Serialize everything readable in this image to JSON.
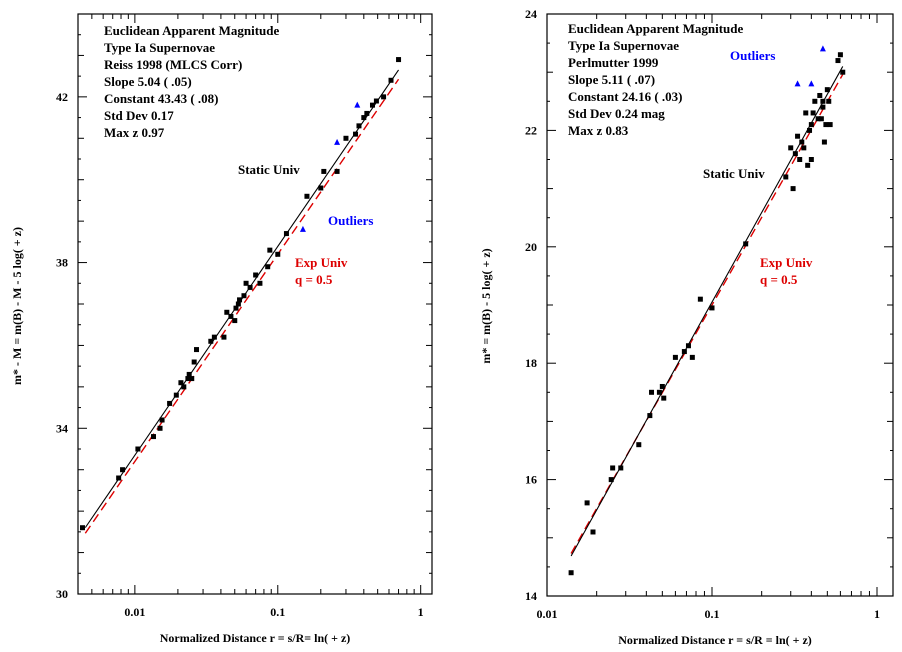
{
  "colors": {
    "static_line": "#000000",
    "exp_line": "#dd0000",
    "points": "#000000",
    "outliers": "#0000ff",
    "exp_label": "#dd0000",
    "outlier_label": "#0000ff"
  },
  "chart_data": [
    {
      "type": "scatter",
      "xscale": "log",
      "xlim": [
        0.004,
        1.2
      ],
      "ylim": [
        30,
        44
      ],
      "xticks": [
        0.01,
        0.1,
        1
      ],
      "xtick_labels": [
        "0.01",
        "0.1",
        "1"
      ],
      "yticks": [
        30,
        34,
        38,
        42
      ],
      "ytick_labels": [
        "30",
        "34",
        "38",
        "42"
      ],
      "xlabel": "Normalized Distance  r = s/R= ln( + z)",
      "ylabel": "m* - M  = m(B) - M - 5 log( + z)",
      "info_lines": [
        "Euclidean Apparent Magnitude",
        "Type Ia Supernovae",
        "Reiss  1998  (MLCS Corr)",
        "Slope  5.04 ( .05)",
        "Constant 43.43 ( .08)",
        "Std Dev  0.17",
        "Max z   0.97"
      ],
      "labels": {
        "static": "Static Univ",
        "outliers": "Outliers",
        "exp": "Exp Univ",
        "q": "q = 0.5"
      },
      "lines": {
        "static": {
          "slope": 5.04,
          "constant": 43.43,
          "x_range": [
            0.0045,
            0.7
          ]
        },
        "exp": {
          "slope": 5.0,
          "constant": 43.2,
          "x_range": [
            0.0045,
            0.7
          ]
        }
      },
      "points": [
        [
          0.0043,
          31.6
        ],
        [
          0.0077,
          32.8
        ],
        [
          0.0082,
          33.0
        ],
        [
          0.0105,
          33.5
        ],
        [
          0.0135,
          33.8
        ],
        [
          0.015,
          34.0
        ],
        [
          0.0155,
          34.2
        ],
        [
          0.0175,
          34.6
        ],
        [
          0.0195,
          34.8
        ],
        [
          0.021,
          35.1
        ],
        [
          0.022,
          35.0
        ],
        [
          0.0235,
          35.2
        ],
        [
          0.024,
          35.3
        ],
        [
          0.025,
          35.2
        ],
        [
          0.026,
          35.6
        ],
        [
          0.027,
          35.9
        ],
        [
          0.034,
          36.1
        ],
        [
          0.036,
          36.2
        ],
        [
          0.042,
          36.2
        ],
        [
          0.044,
          36.8
        ],
        [
          0.047,
          36.7
        ],
        [
          0.05,
          36.6
        ],
        [
          0.051,
          36.9
        ],
        [
          0.053,
          37.0
        ],
        [
          0.054,
          37.1
        ],
        [
          0.058,
          37.2
        ],
        [
          0.06,
          37.5
        ],
        [
          0.064,
          37.4
        ],
        [
          0.07,
          37.7
        ],
        [
          0.075,
          37.5
        ],
        [
          0.085,
          37.9
        ],
        [
          0.088,
          38.3
        ],
        [
          0.1,
          38.2
        ],
        [
          0.115,
          38.7
        ],
        [
          0.16,
          39.6
        ],
        [
          0.2,
          39.8
        ],
        [
          0.21,
          40.2
        ],
        [
          0.26,
          40.2
        ],
        [
          0.3,
          41.0
        ],
        [
          0.35,
          41.1
        ],
        [
          0.37,
          41.3
        ],
        [
          0.4,
          41.5
        ],
        [
          0.42,
          41.6
        ],
        [
          0.46,
          41.8
        ],
        [
          0.49,
          41.9
        ],
        [
          0.55,
          42.0
        ],
        [
          0.62,
          42.4
        ],
        [
          0.7,
          42.9
        ]
      ],
      "outliers": [
        [
          0.15,
          38.8
        ],
        [
          0.26,
          40.9
        ],
        [
          0.36,
          41.8
        ]
      ]
    },
    {
      "type": "scatter",
      "xscale": "log",
      "xlim": [
        0.01,
        1.25
      ],
      "ylim": [
        14,
        24
      ],
      "xticks": [
        0.01,
        0.1,
        1
      ],
      "xtick_labels": [
        "0.01",
        "0.1",
        "1"
      ],
      "yticks": [
        14,
        16,
        18,
        20,
        22,
        24
      ],
      "ytick_labels": [
        "14",
        "16",
        "18",
        "20",
        "22",
        "24"
      ],
      "xlabel": "Normalized Distance  r = s/R = ln( + z)",
      "ylabel": "m* = m(B) - 5 log( + z)",
      "info_lines": [
        "Euclidean Apparent Magnitude",
        "Type Ia Supernovae",
        "Perlmutter 1999",
        "Slope  5.11 ( .07)",
        "Constant  24.16 ( .03)",
        "Std Dev  0.24 mag",
        "Max z   0.83"
      ],
      "labels": {
        "static": "Static Univ",
        "outliers": "Outliers",
        "exp": "Exp Univ",
        "q": "q = 0.5"
      },
      "lines": {
        "static": {
          "slope": 5.11,
          "constant": 24.16,
          "x_range": [
            0.014,
            0.62
          ]
        },
        "exp": {
          "slope": 5.0,
          "constant": 24.0,
          "x_range": [
            0.014,
            0.62
          ]
        }
      },
      "points": [
        [
          0.014,
          14.4
        ],
        [
          0.0175,
          15.6
        ],
        [
          0.019,
          15.1
        ],
        [
          0.0245,
          16.0
        ],
        [
          0.025,
          16.2
        ],
        [
          0.028,
          16.2
        ],
        [
          0.036,
          16.6
        ],
        [
          0.042,
          17.1
        ],
        [
          0.043,
          17.5
        ],
        [
          0.048,
          17.5
        ],
        [
          0.05,
          17.6
        ],
        [
          0.051,
          17.4
        ],
        [
          0.06,
          18.1
        ],
        [
          0.068,
          18.2
        ],
        [
          0.072,
          18.3
        ],
        [
          0.076,
          18.1
        ],
        [
          0.085,
          19.1
        ],
        [
          0.1,
          18.95
        ],
        [
          0.16,
          20.05
        ],
        [
          0.28,
          21.2
        ],
        [
          0.3,
          21.7
        ],
        [
          0.31,
          21.0
        ],
        [
          0.32,
          21.6
        ],
        [
          0.33,
          21.9
        ],
        [
          0.34,
          21.5
        ],
        [
          0.35,
          21.8
        ],
        [
          0.36,
          21.7
        ],
        [
          0.37,
          22.3
        ],
        [
          0.38,
          21.4
        ],
        [
          0.39,
          22.0
        ],
        [
          0.4,
          21.5
        ],
        [
          0.4,
          22.1
        ],
        [
          0.41,
          22.3
        ],
        [
          0.42,
          22.5
        ],
        [
          0.44,
          22.2
        ],
        [
          0.45,
          22.6
        ],
        [
          0.46,
          22.2
        ],
        [
          0.47,
          22.4
        ],
        [
          0.47,
          22.5
        ],
        [
          0.48,
          21.8
        ],
        [
          0.49,
          22.1
        ],
        [
          0.5,
          22.7
        ],
        [
          0.51,
          22.5
        ],
        [
          0.52,
          22.1
        ],
        [
          0.58,
          23.2
        ],
        [
          0.6,
          23.3
        ],
        [
          0.62,
          23.0
        ]
      ],
      "outliers": [
        [
          0.33,
          22.8
        ],
        [
          0.4,
          22.8
        ],
        [
          0.47,
          23.4
        ]
      ]
    }
  ]
}
